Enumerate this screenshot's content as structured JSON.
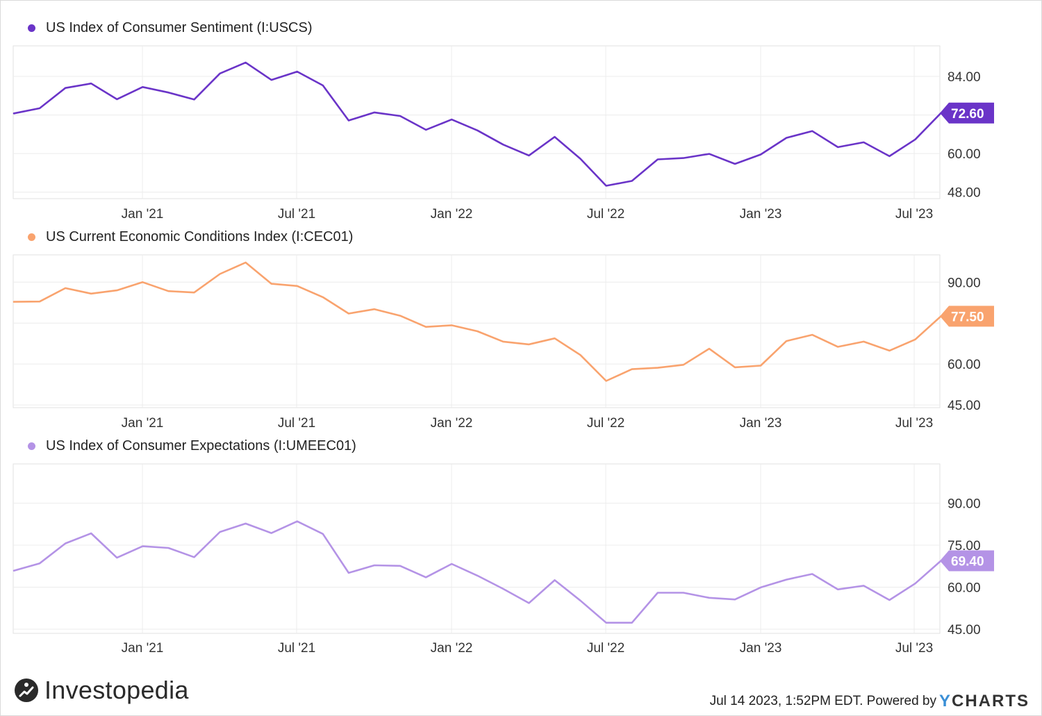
{
  "chart_data": [
    {
      "type": "line",
      "title": "US Index of Consumer Sentiment (I:USCS)",
      "color": "#6a34c8",
      "last_label": "72.60",
      "ylim": [
        46,
        93.5
      ],
      "yticks": [
        48,
        60,
        72,
        84
      ],
      "yticklabels": [
        "48.00",
        "60.00",
        "",
        "84.00"
      ],
      "xticklabels": [
        "Jan '21",
        "Jul '21",
        "Jan '22",
        "Jul '22",
        "Jan '23",
        "Jul '23"
      ],
      "x": [
        "2020-07",
        "2020-08",
        "2020-09",
        "2020-10",
        "2020-11",
        "2020-12",
        "2021-01",
        "2021-02",
        "2021-03",
        "2021-04",
        "2021-05",
        "2021-06",
        "2021-07",
        "2021-08",
        "2021-09",
        "2021-10",
        "2021-11",
        "2021-12",
        "2022-01",
        "2022-02",
        "2022-03",
        "2022-04",
        "2022-05",
        "2022-06",
        "2022-07",
        "2022-08",
        "2022-09",
        "2022-10",
        "2022-11",
        "2022-12",
        "2023-01",
        "2023-02",
        "2023-03",
        "2023-04",
        "2023-05",
        "2023-06",
        "2023-07"
      ],
      "values": [
        72.5,
        74.1,
        80.4,
        81.8,
        76.9,
        80.7,
        79.0,
        76.8,
        84.9,
        88.3,
        82.9,
        85.5,
        81.2,
        70.3,
        72.8,
        71.7,
        67.4,
        70.6,
        67.2,
        62.8,
        59.4,
        65.2,
        58.4,
        50.0,
        51.5,
        58.2,
        58.6,
        59.9,
        56.8,
        59.7,
        64.9,
        67.0,
        62.0,
        63.5,
        59.2,
        64.4,
        72.6
      ]
    },
    {
      "type": "line",
      "title": "US Current Economic Conditions Index (I:CEC01)",
      "color": "#f9a36e",
      "last_label": "77.50",
      "ylim": [
        44,
        100
      ],
      "yticks": [
        45,
        60,
        75,
        90
      ],
      "yticklabels": [
        "45.00",
        "60.00",
        "",
        "90.00"
      ],
      "xticklabels": [
        "Jan '21",
        "Jul '21",
        "Jan '22",
        "Jul '22",
        "Jan '23",
        "Jul '23"
      ],
      "x": [
        "2020-07",
        "2020-08",
        "2020-09",
        "2020-10",
        "2020-11",
        "2020-12",
        "2021-01",
        "2021-02",
        "2021-03",
        "2021-04",
        "2021-05",
        "2021-06",
        "2021-07",
        "2021-08",
        "2021-09",
        "2021-10",
        "2021-11",
        "2021-12",
        "2022-01",
        "2022-02",
        "2022-03",
        "2022-04",
        "2022-05",
        "2022-06",
        "2022-07",
        "2022-08",
        "2022-09",
        "2022-10",
        "2022-11",
        "2022-12",
        "2023-01",
        "2023-02",
        "2023-03",
        "2023-04",
        "2023-05",
        "2023-06",
        "2023-07"
      ],
      "values": [
        82.8,
        82.9,
        87.8,
        85.8,
        87.0,
        90.0,
        86.7,
        86.2,
        93.0,
        97.2,
        89.4,
        88.6,
        84.5,
        78.5,
        80.1,
        77.7,
        73.6,
        74.2,
        72.0,
        68.2,
        67.2,
        69.4,
        63.3,
        53.8,
        58.1,
        58.6,
        59.7,
        65.6,
        58.8,
        59.4,
        68.4,
        70.7,
        66.3,
        68.2,
        64.9,
        69.0,
        77.5
      ]
    },
    {
      "type": "line",
      "title": "US Index of Consumer Expectations (I:UMEEC01)",
      "color": "#b493e6",
      "last_label": "69.40",
      "ylim": [
        43.5,
        104
      ],
      "yticks": [
        45,
        60,
        75,
        90
      ],
      "yticklabels": [
        "45.00",
        "60.00",
        "75.00",
        "90.00"
      ],
      "xticklabels": [
        "Jan '21",
        "Jul '21",
        "Jan '22",
        "Jul '22",
        "Jan '23",
        "Jul '23"
      ],
      "x": [
        "2020-07",
        "2020-08",
        "2020-09",
        "2020-10",
        "2020-11",
        "2020-12",
        "2021-01",
        "2021-02",
        "2021-03",
        "2021-04",
        "2021-05",
        "2021-06",
        "2021-07",
        "2021-08",
        "2021-09",
        "2021-10",
        "2021-11",
        "2021-12",
        "2022-01",
        "2022-02",
        "2022-03",
        "2022-04",
        "2022-05",
        "2022-06",
        "2022-07",
        "2022-08",
        "2022-09",
        "2022-10",
        "2022-11",
        "2022-12",
        "2023-01",
        "2023-02",
        "2023-03",
        "2023-04",
        "2023-05",
        "2023-06",
        "2023-07"
      ],
      "values": [
        65.9,
        68.5,
        75.6,
        79.2,
        70.5,
        74.6,
        74.0,
        70.7,
        79.7,
        82.7,
        79.3,
        83.5,
        79.0,
        65.1,
        67.8,
        67.6,
        63.5,
        68.3,
        64.1,
        59.4,
        54.3,
        62.5,
        55.2,
        47.3,
        47.3,
        58.0,
        58.0,
        56.2,
        55.6,
        59.9,
        62.7,
        64.7,
        59.2,
        60.5,
        55.4,
        61.3,
        69.4
      ]
    }
  ],
  "footer": {
    "brand": "Investopedia",
    "timestamp": "Jul 14 2023, 1:52PM EDT.",
    "powered_by": "Powered by",
    "ycharts_y": "Y",
    "ycharts_rest": "CHARTS"
  }
}
